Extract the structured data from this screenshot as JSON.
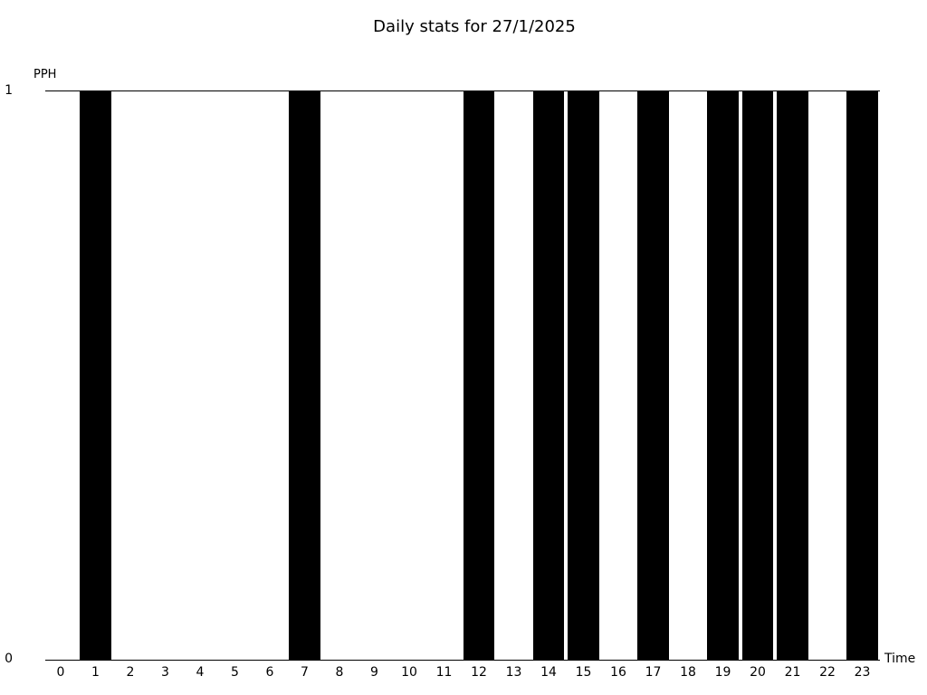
{
  "chart_data": {
    "type": "bar",
    "title": "Daily stats for 27/1/2025",
    "xlabel": "Time",
    "ylabel": "PPH",
    "categories": [
      "0",
      "1",
      "2",
      "3",
      "4",
      "5",
      "6",
      "7",
      "8",
      "9",
      "10",
      "11",
      "12",
      "13",
      "14",
      "15",
      "16",
      "17",
      "18",
      "19",
      "20",
      "21",
      "22",
      "23"
    ],
    "values": [
      0,
      1,
      0,
      0,
      0,
      0,
      0,
      1,
      0,
      0,
      0,
      0,
      1,
      0,
      1,
      1,
      0,
      1,
      0,
      1,
      1,
      1,
      0,
      1
    ],
    "ylim": [
      0,
      1
    ],
    "ytick_labels": [
      "0",
      "1"
    ],
    "bar_color": "#000000",
    "background_color": "#ffffff",
    "grid": false,
    "legend": "none"
  }
}
